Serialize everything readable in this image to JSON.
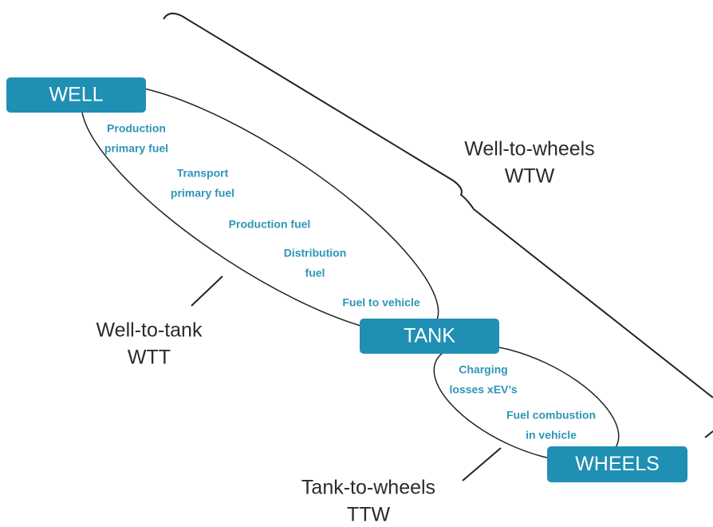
{
  "nodes": [
    {
      "label": "WELL"
    },
    {
      "label": "TANK"
    },
    {
      "label": "WHEELS"
    }
  ],
  "steps": [
    {
      "lines": [
        "Production",
        "primary fuel"
      ]
    },
    {
      "lines": [
        "Transport",
        "primary fuel"
      ]
    },
    {
      "lines": [
        "Production fuel"
      ]
    },
    {
      "lines": [
        "Distribution",
        "fuel"
      ]
    },
    {
      "lines": [
        "Fuel to vehicle"
      ]
    },
    {
      "lines": [
        "Charging",
        "losses xEV’s"
      ]
    },
    {
      "lines": [
        "Fuel combustion",
        "in vehicle"
      ]
    }
  ],
  "stages": [
    {
      "lines": [
        "Well-to-wheels",
        "WTW"
      ]
    },
    {
      "lines": [
        "Well-to-tank",
        "WTT"
      ]
    },
    {
      "lines": [
        "Tank-to-wheels",
        "TTW"
      ]
    }
  ]
}
